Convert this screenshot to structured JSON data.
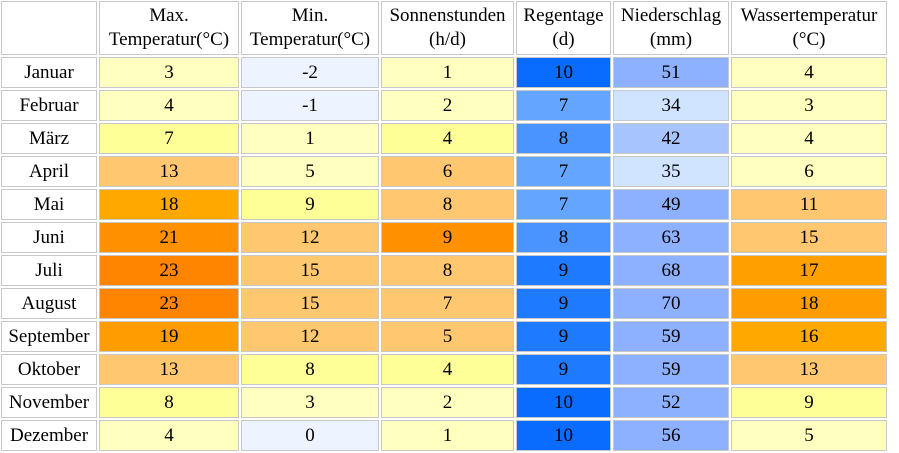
{
  "chart_data": {
    "type": "table",
    "headers": [
      {
        "line1": "",
        "line2": ""
      },
      {
        "line1": "Max.",
        "line2": "Temperatur(°C)"
      },
      {
        "line1": "Min.",
        "line2": "Temperatur(°C)"
      },
      {
        "line1": "Sonnenstunden",
        "line2": "(h/d)"
      },
      {
        "line1": "Regentage",
        "line2": "(d)"
      },
      {
        "line1": "Niederschlag",
        "line2": "(mm)"
      },
      {
        "line1": "Wassertemperatur",
        "line2": "(°C)"
      }
    ],
    "rows": [
      {
        "month": "Januar",
        "max_temp": "3",
        "min_temp": "-2",
        "sun_hours": "1",
        "rain_days": "10",
        "precip": "51",
        "water_temp": "4"
      },
      {
        "month": "Februar",
        "max_temp": "4",
        "min_temp": "-1",
        "sun_hours": "2",
        "rain_days": "7",
        "precip": "34",
        "water_temp": "3"
      },
      {
        "month": "März",
        "max_temp": "7",
        "min_temp": "1",
        "sun_hours": "4",
        "rain_days": "8",
        "precip": "42",
        "water_temp": "4"
      },
      {
        "month": "April",
        "max_temp": "13",
        "min_temp": "5",
        "sun_hours": "6",
        "rain_days": "7",
        "precip": "35",
        "water_temp": "6"
      },
      {
        "month": "Mai",
        "max_temp": "18",
        "min_temp": "9",
        "sun_hours": "8",
        "rain_days": "7",
        "precip": "49",
        "water_temp": "11"
      },
      {
        "month": "Juni",
        "max_temp": "21",
        "min_temp": "12",
        "sun_hours": "9",
        "rain_days": "8",
        "precip": "63",
        "water_temp": "15"
      },
      {
        "month": "Juli",
        "max_temp": "23",
        "min_temp": "15",
        "sun_hours": "8",
        "rain_days": "9",
        "precip": "68",
        "water_temp": "17"
      },
      {
        "month": "August",
        "max_temp": "23",
        "min_temp": "15",
        "sun_hours": "7",
        "rain_days": "9",
        "precip": "70",
        "water_temp": "18"
      },
      {
        "month": "September",
        "max_temp": "19",
        "min_temp": "12",
        "sun_hours": "5",
        "rain_days": "9",
        "precip": "59",
        "water_temp": "16"
      },
      {
        "month": "Oktober",
        "max_temp": "13",
        "min_temp": "8",
        "sun_hours": "4",
        "rain_days": "9",
        "precip": "59",
        "water_temp": "13"
      },
      {
        "month": "November",
        "max_temp": "8",
        "min_temp": "3",
        "sun_hours": "2",
        "rain_days": "10",
        "precip": "52",
        "water_temp": "9"
      },
      {
        "month": "Dezember",
        "max_temp": "4",
        "min_temp": "0",
        "sun_hours": "1",
        "rain_days": "10",
        "precip": "56",
        "water_temp": "5"
      }
    ],
    "cell_colors": {
      "max_temp": [
        "#ffffc0",
        "#ffffc0",
        "#ffff98",
        "#ffc870",
        "#ffa800",
        "#ff9000",
        "#ff8400",
        "#ff8400",
        "#ff9c00",
        "#ffc870",
        "#ffff98",
        "#ffffc0"
      ],
      "min_temp": [
        "#eef4ff",
        "#eef4ff",
        "#ffffc0",
        "#ffffc0",
        "#ffff98",
        "#ffc870",
        "#ffc870",
        "#ffc870",
        "#ffc870",
        "#ffff98",
        "#ffffc0",
        "#eef4ff"
      ],
      "sun_hours": [
        "#ffffc0",
        "#ffffc0",
        "#ffff98",
        "#ffc870",
        "#ffc870",
        "#ff9000",
        "#ffc870",
        "#ffc870",
        "#ffc870",
        "#ffff98",
        "#ffffc0",
        "#ffffc0"
      ],
      "rain_days": [
        "#0a6cff",
        "#64a6ff",
        "#4a94ff",
        "#64a6ff",
        "#64a6ff",
        "#4a94ff",
        "#1e7aff",
        "#1e7aff",
        "#1e7aff",
        "#1e7aff",
        "#0a6cff",
        "#0a6cff"
      ],
      "precip": [
        "#8db0ff",
        "#d0e4ff",
        "#a8c4ff",
        "#d0e4ff",
        "#8db0ff",
        "#8db0ff",
        "#8db0ff",
        "#8db0ff",
        "#8db0ff",
        "#8db0ff",
        "#8db0ff",
        "#8db0ff"
      ],
      "water_temp": [
        "#ffffc0",
        "#ffffc0",
        "#ffffc0",
        "#ffffc0",
        "#ffc870",
        "#ffc870",
        "#ffa000",
        "#ff9c00",
        "#ffa800",
        "#ffc870",
        "#ffff98",
        "#ffffc0"
      ]
    }
  }
}
